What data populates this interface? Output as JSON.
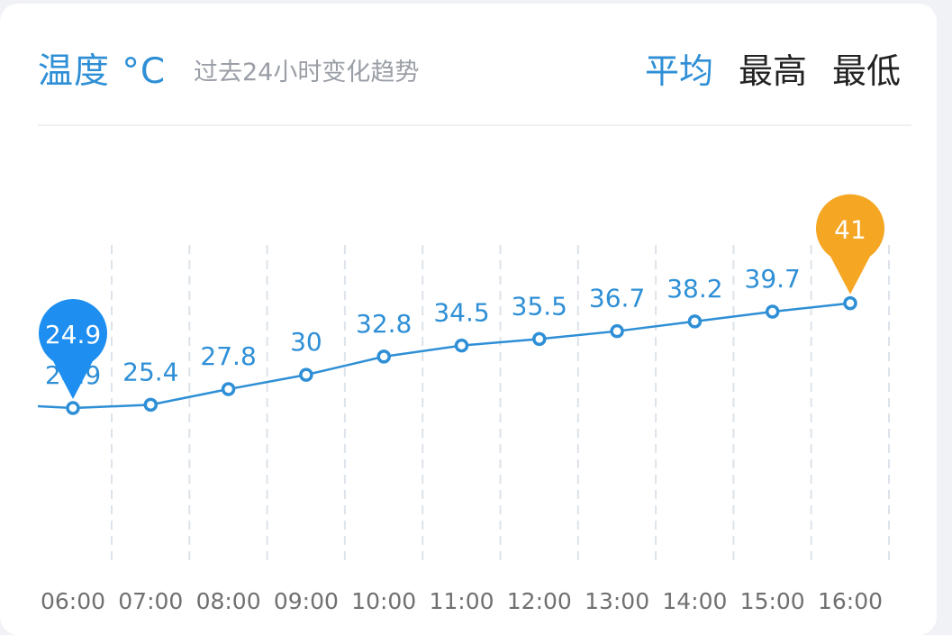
{
  "header": {
    "title": "温度 °C",
    "subtitle": "过去24小时变化趋势",
    "tabs": [
      "平均",
      "最高",
      "最低"
    ],
    "active_tab": 0
  },
  "colors": {
    "accent": "#2e8fd6",
    "line": "#2e8fd6",
    "min_marker": "#1e8ff0",
    "max_marker": "#f5a623",
    "grid": "#dde3ea",
    "axis_text": "#707070"
  },
  "chart_data": {
    "type": "line",
    "categories": [
      "06:00",
      "07:00",
      "08:00",
      "09:00",
      "10:00",
      "11:00",
      "12:00",
      "13:00",
      "14:00",
      "15:00",
      "16:00"
    ],
    "values": [
      24.9,
      25.4,
      27.8,
      30,
      32.8,
      34.5,
      35.5,
      36.7,
      38.2,
      39.7,
      41
    ],
    "data_labels": [
      "24.9",
      "25.4",
      "27.8",
      "30",
      "32.8",
      "34.5",
      "35.5",
      "36.7",
      "38.2",
      "39.7",
      "41"
    ],
    "min_marker": {
      "label": "24.9",
      "index": 0
    },
    "max_marker": {
      "label": "41",
      "index": 10
    },
    "grid": "vertical-dashed",
    "legend": "none"
  }
}
